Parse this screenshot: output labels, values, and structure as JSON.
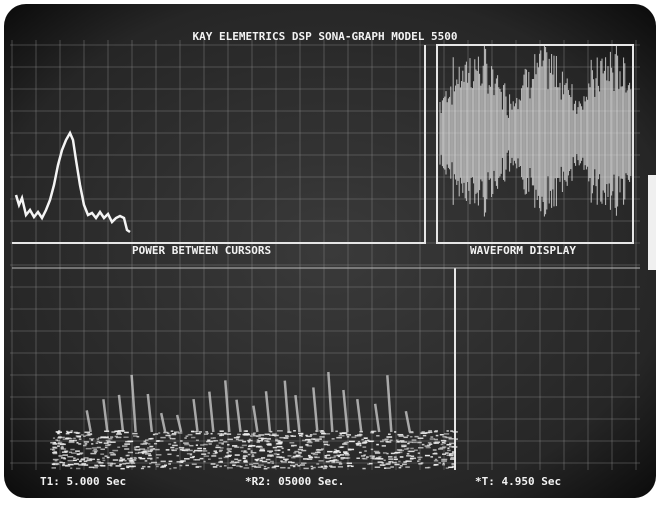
{
  "header": {
    "title": "KAY ELEMETRICS DSP SONA-GRAPH MODEL 5500"
  },
  "panels": {
    "power": {
      "label": "POWER BETWEEN CURSORS"
    },
    "waveform": {
      "label": "WAVEFORM DISPLAY"
    }
  },
  "status": {
    "t1": "T1: 5.000 Sec",
    "r2": "*R2: 05000 Sec.",
    "delta": "*T: 4.950 Sec"
  }
}
